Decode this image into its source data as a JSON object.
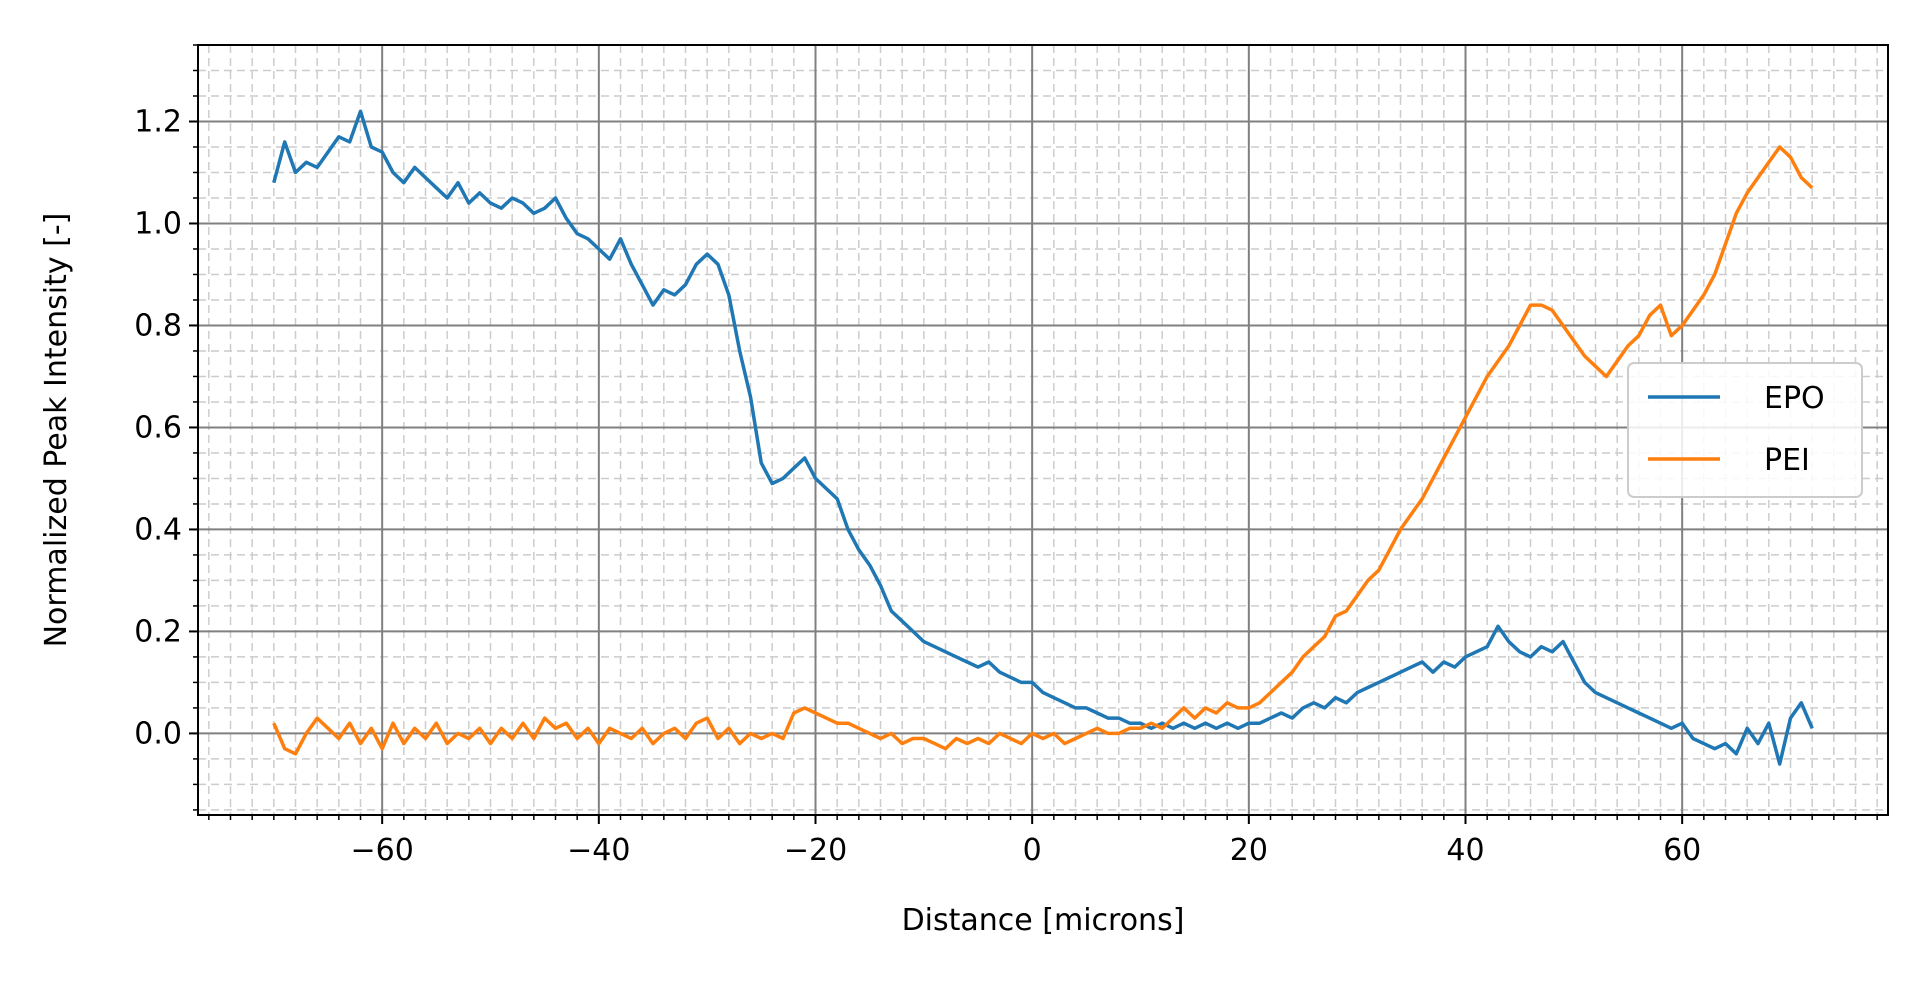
{
  "chart_data": {
    "type": "line",
    "title": "",
    "xlabel": "Distance [microns]",
    "ylabel": "Normalized Peak Intensity [-]",
    "xlim": [
      -77,
      79
    ],
    "ylim": [
      -0.16,
      1.35
    ],
    "xticks": [
      -60,
      -40,
      -20,
      0,
      20,
      40,
      60
    ],
    "xtick_labels": [
      "−60",
      "−40",
      "−20",
      "0",
      "20",
      "40",
      "60"
    ],
    "yticks": [
      0.0,
      0.2,
      0.4,
      0.6,
      0.8,
      1.0,
      1.2
    ],
    "ytick_labels": [
      "0.0",
      "0.2",
      "0.4",
      "0.6",
      "0.8",
      "1.0",
      "1.2"
    ],
    "x_minor_step": 2,
    "y_minor_step": 0.05,
    "grid": {
      "major": true,
      "minor": true,
      "major_color": "#808080",
      "minor_color": "#cccccc"
    },
    "legend": {
      "position": "right",
      "entries": [
        "EPO",
        "PEI"
      ]
    },
    "series": [
      {
        "name": "EPO",
        "color": "#1f77b4",
        "points": [
          [
            -70,
            1.08
          ],
          [
            -69,
            1.16
          ],
          [
            -68,
            1.1
          ],
          [
            -67,
            1.12
          ],
          [
            -66,
            1.11
          ],
          [
            -65,
            1.14
          ],
          [
            -64,
            1.17
          ],
          [
            -63,
            1.16
          ],
          [
            -62,
            1.22
          ],
          [
            -61,
            1.15
          ],
          [
            -60,
            1.14
          ],
          [
            -59,
            1.1
          ],
          [
            -58,
            1.08
          ],
          [
            -57,
            1.11
          ],
          [
            -56,
            1.09
          ],
          [
            -55,
            1.07
          ],
          [
            -54,
            1.05
          ],
          [
            -53,
            1.08
          ],
          [
            -52,
            1.04
          ],
          [
            -51,
            1.06
          ],
          [
            -50,
            1.04
          ],
          [
            -49,
            1.03
          ],
          [
            -48,
            1.05
          ],
          [
            -47,
            1.04
          ],
          [
            -46,
            1.02
          ],
          [
            -45,
            1.03
          ],
          [
            -44,
            1.05
          ],
          [
            -43,
            1.01
          ],
          [
            -42,
            0.98
          ],
          [
            -41,
            0.97
          ],
          [
            -40,
            0.95
          ],
          [
            -39,
            0.93
          ],
          [
            -38,
            0.97
          ],
          [
            -37,
            0.92
          ],
          [
            -36,
            0.88
          ],
          [
            -35,
            0.84
          ],
          [
            -34,
            0.87
          ],
          [
            -33,
            0.86
          ],
          [
            -32,
            0.88
          ],
          [
            -31,
            0.92
          ],
          [
            -30,
            0.94
          ],
          [
            -29,
            0.92
          ],
          [
            -28,
            0.86
          ],
          [
            -27,
            0.75
          ],
          [
            -26,
            0.66
          ],
          [
            -25,
            0.53
          ],
          [
            -24,
            0.49
          ],
          [
            -23,
            0.5
          ],
          [
            -22,
            0.52
          ],
          [
            -21,
            0.54
          ],
          [
            -20,
            0.5
          ],
          [
            -19,
            0.48
          ],
          [
            -18,
            0.46
          ],
          [
            -17,
            0.4
          ],
          [
            -16,
            0.36
          ],
          [
            -15,
            0.33
          ],
          [
            -14,
            0.29
          ],
          [
            -13,
            0.24
          ],
          [
            -12,
            0.22
          ],
          [
            -11,
            0.2
          ],
          [
            -10,
            0.18
          ],
          [
            -9,
            0.17
          ],
          [
            -8,
            0.16
          ],
          [
            -7,
            0.15
          ],
          [
            -6,
            0.14
          ],
          [
            -5,
            0.13
          ],
          [
            -4,
            0.14
          ],
          [
            -3,
            0.12
          ],
          [
            -2,
            0.11
          ],
          [
            -1,
            0.1
          ],
          [
            0,
            0.1
          ],
          [
            1,
            0.08
          ],
          [
            2,
            0.07
          ],
          [
            3,
            0.06
          ],
          [
            4,
            0.05
          ],
          [
            5,
            0.05
          ],
          [
            6,
            0.04
          ],
          [
            7,
            0.03
          ],
          [
            8,
            0.03
          ],
          [
            9,
            0.02
          ],
          [
            10,
            0.02
          ],
          [
            11,
            0.01
          ],
          [
            12,
            0.02
          ],
          [
            13,
            0.01
          ],
          [
            14,
            0.02
          ],
          [
            15,
            0.01
          ],
          [
            16,
            0.02
          ],
          [
            17,
            0.01
          ],
          [
            18,
            0.02
          ],
          [
            19,
            0.01
          ],
          [
            20,
            0.02
          ],
          [
            21,
            0.02
          ],
          [
            22,
            0.03
          ],
          [
            23,
            0.04
          ],
          [
            24,
            0.03
          ],
          [
            25,
            0.05
          ],
          [
            26,
            0.06
          ],
          [
            27,
            0.05
          ],
          [
            28,
            0.07
          ],
          [
            29,
            0.06
          ],
          [
            30,
            0.08
          ],
          [
            31,
            0.09
          ],
          [
            32,
            0.1
          ],
          [
            33,
            0.11
          ],
          [
            34,
            0.12
          ],
          [
            35,
            0.13
          ],
          [
            36,
            0.14
          ],
          [
            37,
            0.12
          ],
          [
            38,
            0.14
          ],
          [
            39,
            0.13
          ],
          [
            40,
            0.15
          ],
          [
            41,
            0.16
          ],
          [
            42,
            0.17
          ],
          [
            43,
            0.21
          ],
          [
            44,
            0.18
          ],
          [
            45,
            0.16
          ],
          [
            46,
            0.15
          ],
          [
            47,
            0.17
          ],
          [
            48,
            0.16
          ],
          [
            49,
            0.18
          ],
          [
            50,
            0.14
          ],
          [
            51,
            0.1
          ],
          [
            52,
            0.08
          ],
          [
            53,
            0.07
          ],
          [
            54,
            0.06
          ],
          [
            55,
            0.05
          ],
          [
            56,
            0.04
          ],
          [
            57,
            0.03
          ],
          [
            58,
            0.02
          ],
          [
            59,
            0.01
          ],
          [
            60,
            0.02
          ],
          [
            61,
            -0.01
          ],
          [
            62,
            -0.02
          ],
          [
            63,
            -0.03
          ],
          [
            64,
            -0.02
          ],
          [
            65,
            -0.04
          ],
          [
            66,
            0.01
          ],
          [
            67,
            -0.02
          ],
          [
            68,
            0.02
          ],
          [
            69,
            -0.06
          ],
          [
            70,
            0.03
          ],
          [
            71,
            0.06
          ],
          [
            72,
            0.01
          ]
        ]
      },
      {
        "name": "PEI",
        "color": "#ff7f0e",
        "points": [
          [
            -70,
            0.02
          ],
          [
            -69,
            -0.03
          ],
          [
            -68,
            -0.04
          ],
          [
            -67,
            0.0
          ],
          [
            -66,
            0.03
          ],
          [
            -65,
            0.01
          ],
          [
            -64,
            -0.01
          ],
          [
            -63,
            0.02
          ],
          [
            -62,
            -0.02
          ],
          [
            -61,
            0.01
          ],
          [
            -60,
            -0.03
          ],
          [
            -59,
            0.02
          ],
          [
            -58,
            -0.02
          ],
          [
            -57,
            0.01
          ],
          [
            -56,
            -0.01
          ],
          [
            -55,
            0.02
          ],
          [
            -54,
            -0.02
          ],
          [
            -53,
            0.0
          ],
          [
            -52,
            -0.01
          ],
          [
            -51,
            0.01
          ],
          [
            -50,
            -0.02
          ],
          [
            -49,
            0.01
          ],
          [
            -48,
            -0.01
          ],
          [
            -47,
            0.02
          ],
          [
            -46,
            -0.01
          ],
          [
            -45,
            0.03
          ],
          [
            -44,
            0.01
          ],
          [
            -43,
            0.02
          ],
          [
            -42,
            -0.01
          ],
          [
            -41,
            0.01
          ],
          [
            -40,
            -0.02
          ],
          [
            -39,
            0.01
          ],
          [
            -38,
            0.0
          ],
          [
            -37,
            -0.01
          ],
          [
            -36,
            0.01
          ],
          [
            -35,
            -0.02
          ],
          [
            -34,
            0.0
          ],
          [
            -33,
            0.01
          ],
          [
            -32,
            -0.01
          ],
          [
            -31,
            0.02
          ],
          [
            -30,
            0.03
          ],
          [
            -29,
            -0.01
          ],
          [
            -28,
            0.01
          ],
          [
            -27,
            -0.02
          ],
          [
            -26,
            0.0
          ],
          [
            -25,
            -0.01
          ],
          [
            -24,
            0.0
          ],
          [
            -23,
            -0.01
          ],
          [
            -22,
            0.04
          ],
          [
            -21,
            0.05
          ],
          [
            -20,
            0.04
          ],
          [
            -19,
            0.03
          ],
          [
            -18,
            0.02
          ],
          [
            -17,
            0.02
          ],
          [
            -16,
            0.01
          ],
          [
            -15,
            0.0
          ],
          [
            -14,
            -0.01
          ],
          [
            -13,
            0.0
          ],
          [
            -12,
            -0.02
          ],
          [
            -11,
            -0.01
          ],
          [
            -10,
            -0.01
          ],
          [
            -9,
            -0.02
          ],
          [
            -8,
            -0.03
          ],
          [
            -7,
            -0.01
          ],
          [
            -6,
            -0.02
          ],
          [
            -5,
            -0.01
          ],
          [
            -4,
            -0.02
          ],
          [
            -3,
            0.0
          ],
          [
            -2,
            -0.01
          ],
          [
            -1,
            -0.02
          ],
          [
            0,
            0.0
          ],
          [
            1,
            -0.01
          ],
          [
            2,
            0.0
          ],
          [
            3,
            -0.02
          ],
          [
            4,
            -0.01
          ],
          [
            5,
            0.0
          ],
          [
            6,
            0.01
          ],
          [
            7,
            0.0
          ],
          [
            8,
            0.0
          ],
          [
            9,
            0.01
          ],
          [
            10,
            0.01
          ],
          [
            11,
            0.02
          ],
          [
            12,
            0.01
          ],
          [
            13,
            0.03
          ],
          [
            14,
            0.05
          ],
          [
            15,
            0.03
          ],
          [
            16,
            0.05
          ],
          [
            17,
            0.04
          ],
          [
            18,
            0.06
          ],
          [
            19,
            0.05
          ],
          [
            20,
            0.05
          ],
          [
            21,
            0.06
          ],
          [
            22,
            0.08
          ],
          [
            23,
            0.1
          ],
          [
            24,
            0.12
          ],
          [
            25,
            0.15
          ],
          [
            26,
            0.17
          ],
          [
            27,
            0.19
          ],
          [
            28,
            0.23
          ],
          [
            29,
            0.24
          ],
          [
            30,
            0.27
          ],
          [
            31,
            0.3
          ],
          [
            32,
            0.32
          ],
          [
            33,
            0.36
          ],
          [
            34,
            0.4
          ],
          [
            35,
            0.43
          ],
          [
            36,
            0.46
          ],
          [
            37,
            0.5
          ],
          [
            38,
            0.54
          ],
          [
            39,
            0.58
          ],
          [
            40,
            0.62
          ],
          [
            41,
            0.66
          ],
          [
            42,
            0.7
          ],
          [
            43,
            0.73
          ],
          [
            44,
            0.76
          ],
          [
            45,
            0.8
          ],
          [
            46,
            0.84
          ],
          [
            47,
            0.84
          ],
          [
            48,
            0.83
          ],
          [
            49,
            0.8
          ],
          [
            50,
            0.77
          ],
          [
            51,
            0.74
          ],
          [
            52,
            0.72
          ],
          [
            53,
            0.7
          ],
          [
            54,
            0.73
          ],
          [
            55,
            0.76
          ],
          [
            56,
            0.78
          ],
          [
            57,
            0.82
          ],
          [
            58,
            0.84
          ],
          [
            59,
            0.78
          ],
          [
            60,
            0.8
          ],
          [
            61,
            0.83
          ],
          [
            62,
            0.86
          ],
          [
            63,
            0.9
          ],
          [
            64,
            0.96
          ],
          [
            65,
            1.02
          ],
          [
            66,
            1.06
          ],
          [
            67,
            1.09
          ],
          [
            68,
            1.12
          ],
          [
            69,
            1.15
          ],
          [
            70,
            1.13
          ],
          [
            71,
            1.09
          ],
          [
            72,
            1.07
          ]
        ]
      }
    ]
  }
}
